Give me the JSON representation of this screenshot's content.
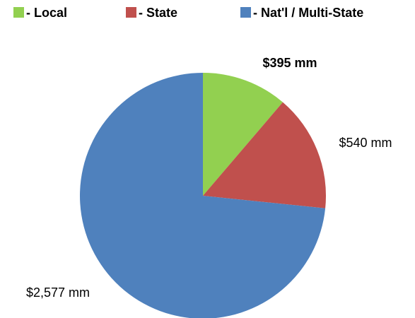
{
  "chart_data": {
    "type": "pie",
    "categories": [
      "- Local",
      "- State",
      "- Nat'l / Multi-State"
    ],
    "values": [
      395,
      540,
      2577
    ],
    "value_labels": [
      "$395 mm",
      "$540 mm",
      "$2,577 mm"
    ],
    "colors": [
      "#92d050",
      "#c0504d",
      "#4f81bd"
    ],
    "legend": "top"
  }
}
